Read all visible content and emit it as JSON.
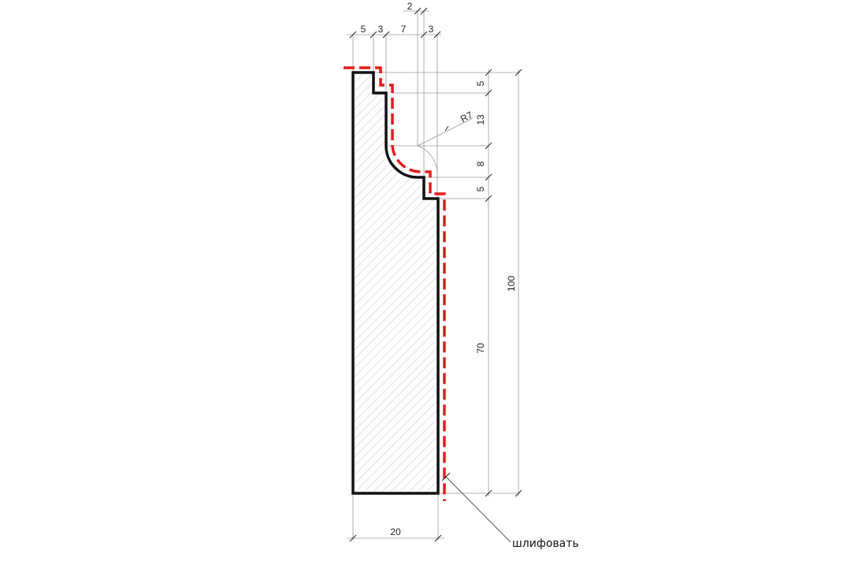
{
  "dimensions": {
    "top": [
      "5",
      "3",
      "7",
      "3"
    ],
    "top_small": "2",
    "right": [
      "5",
      "13",
      "8",
      "5"
    ],
    "overall_height": "100",
    "lower_height": "70",
    "radius": "R7",
    "bottom_width": "20"
  },
  "note": "шлифовать",
  "colors": {
    "outline": "#111111",
    "cut_line": "#e31b1b",
    "hatch": "#b5b5b5",
    "dim_lines": "#9a9a9a"
  }
}
